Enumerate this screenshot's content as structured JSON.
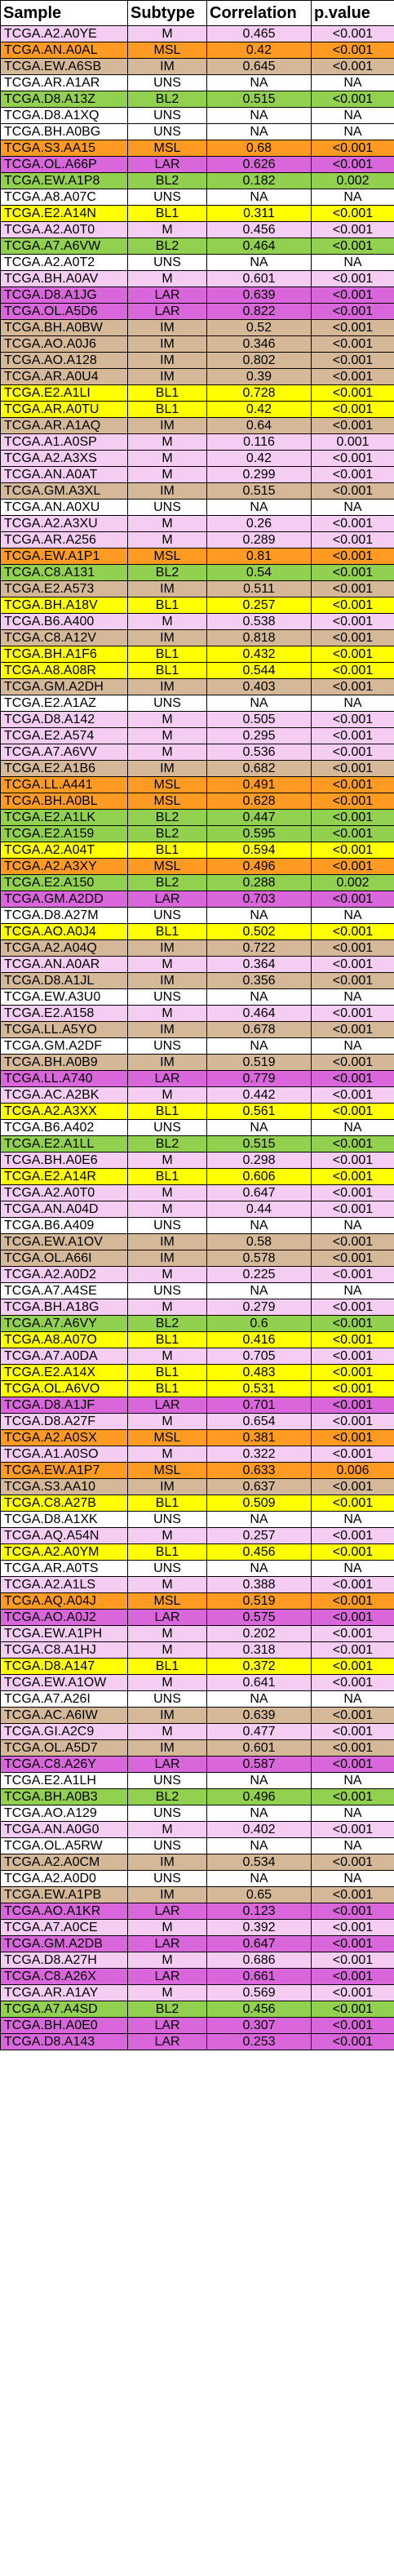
{
  "headers": [
    "Sample",
    "Subtype",
    "Correlation",
    "p.value"
  ],
  "colors": {
    "M": "#f5cdf3",
    "MSL": "#ff9b22",
    "IM": "#d5b897",
    "UNS": "#ffffff",
    "BL2": "#92d050",
    "LAR": "#d966da",
    "BL1": "#ffff00"
  },
  "rows": [
    [
      "TCGA.A2.A0YE",
      "M",
      "0.465",
      "<0.001"
    ],
    [
      "TCGA.AN.A0AL",
      "MSL",
      "0.42",
      "<0.001"
    ],
    [
      "TCGA.EW.A6SB",
      "IM",
      "0.645",
      "<0.001"
    ],
    [
      "TCGA.AR.A1AR",
      "UNS",
      "NA",
      "NA"
    ],
    [
      "TCGA.D8.A13Z",
      "BL2",
      "0.515",
      "<0.001"
    ],
    [
      "TCGA.D8.A1XQ",
      "UNS",
      "NA",
      "NA"
    ],
    [
      "TCGA.BH.A0BG",
      "UNS",
      "NA",
      "NA"
    ],
    [
      "TCGA.S3.AA15",
      "MSL",
      "0.68",
      "<0.001"
    ],
    [
      "TCGA.OL.A66P",
      "LAR",
      "0.626",
      "<0.001"
    ],
    [
      "TCGA.EW.A1P8",
      "BL2",
      "0.182",
      "0.002"
    ],
    [
      "TCGA.A8.A07C",
      "UNS",
      "NA",
      "NA"
    ],
    [
      "TCGA.E2.A14N",
      "BL1",
      "0.311",
      "<0.001"
    ],
    [
      "TCGA.A2.A0T0",
      "M",
      "0.456",
      "<0.001"
    ],
    [
      "TCGA.A7.A6VW",
      "BL2",
      "0.464",
      "<0.001"
    ],
    [
      "TCGA.A2.A0T2",
      "UNS",
      "NA",
      "NA"
    ],
    [
      "TCGA.BH.A0AV",
      "M",
      "0.601",
      "<0.001"
    ],
    [
      "TCGA.D8.A1JG",
      "LAR",
      "0.639",
      "<0.001"
    ],
    [
      "TCGA.OL.A5D6",
      "LAR",
      "0.822",
      "<0.001"
    ],
    [
      "TCGA.BH.A0BW",
      "IM",
      "0.52",
      "<0.001"
    ],
    [
      "TCGA.AO.A0J6",
      "IM",
      "0.346",
      "<0.001"
    ],
    [
      "TCGA.AO.A128",
      "IM",
      "0.802",
      "<0.001"
    ],
    [
      "TCGA.AR.A0U4",
      "IM",
      "0.39",
      "<0.001"
    ],
    [
      "TCGA.E2.A1LI",
      "BL1",
      "0.728",
      "<0.001"
    ],
    [
      "TCGA.AR.A0TU",
      "BL1",
      "0.42",
      "<0.001"
    ],
    [
      "TCGA.AR.A1AQ",
      "IM",
      "0.64",
      "<0.001"
    ],
    [
      "TCGA.A1.A0SP",
      "M",
      "0.116",
      "0.001"
    ],
    [
      "TCGA.A2.A3XS",
      "M",
      "0.42",
      "<0.001"
    ],
    [
      "TCGA.AN.A0AT",
      "M",
      "0.299",
      "<0.001"
    ],
    [
      "TCGA.GM.A3XL",
      "IM",
      "0.515",
      "<0.001"
    ],
    [
      "TCGA.AN.A0XU",
      "UNS",
      "NA",
      "NA"
    ],
    [
      "TCGA.A2.A3XU",
      "M",
      "0.26",
      "<0.001"
    ],
    [
      "TCGA.AR.A256",
      "M",
      "0.289",
      "<0.001"
    ],
    [
      "TCGA.EW.A1P1",
      "MSL",
      "0.81",
      "<0.001"
    ],
    [
      "TCGA.C8.A131",
      "BL2",
      "0.54",
      "<0.001"
    ],
    [
      "TCGA.E2.A573",
      "IM",
      "0.511",
      "<0.001"
    ],
    [
      "TCGA.BH.A18V",
      "BL1",
      "0.257",
      "<0.001"
    ],
    [
      "TCGA.B6.A400",
      "M",
      "0.538",
      "<0.001"
    ],
    [
      "TCGA.C8.A12V",
      "IM",
      "0.818",
      "<0.001"
    ],
    [
      "TCGA.BH.A1F6",
      "BL1",
      "0.432",
      "<0.001"
    ],
    [
      "TCGA.A8.A08R",
      "BL1",
      "0.544",
      "<0.001"
    ],
    [
      "TCGA.GM.A2DH",
      "IM",
      "0.403",
      "<0.001"
    ],
    [
      "TCGA.E2.A1AZ",
      "UNS",
      "NA",
      "NA"
    ],
    [
      "TCGA.D8.A142",
      "M",
      "0.505",
      "<0.001"
    ],
    [
      "TCGA.E2.A574",
      "M",
      "0.295",
      "<0.001"
    ],
    [
      "TCGA.A7.A6VV",
      "M",
      "0.536",
      "<0.001"
    ],
    [
      "TCGA.E2.A1B6",
      "IM",
      "0.682",
      "<0.001"
    ],
    [
      "TCGA.LL.A441",
      "MSL",
      "0.491",
      "<0.001"
    ],
    [
      "TCGA.BH.A0BL",
      "MSL",
      "0.628",
      "<0.001"
    ],
    [
      "TCGA.E2.A1LK",
      "BL2",
      "0.447",
      "<0.001"
    ],
    [
      "TCGA.E2.A159",
      "BL2",
      "0.595",
      "<0.001"
    ],
    [
      "TCGA.A2.A04T",
      "BL1",
      "0.594",
      "<0.001"
    ],
    [
      "TCGA.A2.A3XY",
      "MSL",
      "0.496",
      "<0.001"
    ],
    [
      "TCGA.E2.A150",
      "BL2",
      "0.288",
      "0.002"
    ],
    [
      "TCGA.GM.A2DD",
      "LAR",
      "0.703",
      "<0.001"
    ],
    [
      "TCGA.D8.A27M",
      "UNS",
      "NA",
      "NA"
    ],
    [
      "TCGA.AO.A0J4",
      "BL1",
      "0.502",
      "<0.001"
    ],
    [
      "TCGA.A2.A04Q",
      "IM",
      "0.722",
      "<0.001"
    ],
    [
      "TCGA.AN.A0AR",
      "M",
      "0.364",
      "<0.001"
    ],
    [
      "TCGA.D8.A1JL",
      "IM",
      "0.356",
      "<0.001"
    ],
    [
      "TCGA.EW.A3U0",
      "UNS",
      "NA",
      "NA"
    ],
    [
      "TCGA.E2.A158",
      "M",
      "0.464",
      "<0.001"
    ],
    [
      "TCGA.LL.A5YO",
      "IM",
      "0.678",
      "<0.001"
    ],
    [
      "TCGA.GM.A2DF",
      "UNS",
      "NA",
      "NA"
    ],
    [
      "TCGA.BH.A0B9",
      "IM",
      "0.519",
      "<0.001"
    ],
    [
      "TCGA.LL.A740",
      "LAR",
      "0.779",
      "<0.001"
    ],
    [
      "TCGA.AC.A2BK",
      "M",
      "0.442",
      "<0.001"
    ],
    [
      "TCGA.A2.A3XX",
      "BL1",
      "0.561",
      "<0.001"
    ],
    [
      "TCGA.B6.A402",
      "UNS",
      "NA",
      "NA"
    ],
    [
      "TCGA.E2.A1LL",
      "BL2",
      "0.515",
      "<0.001"
    ],
    [
      "TCGA.BH.A0E6",
      "M",
      "0.298",
      "<0.001"
    ],
    [
      "TCGA.E2.A14R",
      "BL1",
      "0.606",
      "<0.001"
    ],
    [
      "TCGA.A2.A0T0",
      "M",
      "0.647",
      "<0.001"
    ],
    [
      "TCGA.AN.A04D",
      "M",
      "0.44",
      "<0.001"
    ],
    [
      "TCGA.B6.A409",
      "UNS",
      "NA",
      "NA"
    ],
    [
      "TCGA.EW.A1OV",
      "IM",
      "0.58",
      "<0.001"
    ],
    [
      "TCGA.OL.A66I",
      "IM",
      "0.578",
      "<0.001"
    ],
    [
      "TCGA.A2.A0D2",
      "M",
      "0.225",
      "<0.001"
    ],
    [
      "TCGA.A7.A4SE",
      "UNS",
      "NA",
      "NA"
    ],
    [
      "TCGA.BH.A18G",
      "M",
      "0.279",
      "<0.001"
    ],
    [
      "TCGA.A7.A6VY",
      "BL2",
      "0.6",
      "<0.001"
    ],
    [
      "TCGA.A8.A07O",
      "BL1",
      "0.416",
      "<0.001"
    ],
    [
      "TCGA.A7.A0DA",
      "M",
      "0.705",
      "<0.001"
    ],
    [
      "TCGA.E2.A14X",
      "BL1",
      "0.483",
      "<0.001"
    ],
    [
      "TCGA.OL.A6VO",
      "BL1",
      "0.531",
      "<0.001"
    ],
    [
      "TCGA.D8.A1JF",
      "LAR",
      "0.701",
      "<0.001"
    ],
    [
      "TCGA.D8.A27F",
      "M",
      "0.654",
      "<0.001"
    ],
    [
      "TCGA.A2.A0SX",
      "MSL",
      "0.381",
      "<0.001"
    ],
    [
      "TCGA.A1.A0SO",
      "M",
      "0.322",
      "<0.001"
    ],
    [
      "TCGA.EW.A1P7",
      "MSL",
      "0.633",
      "0.006"
    ],
    [
      "TCGA.S3.AA10",
      "IM",
      "0.637",
      "<0.001"
    ],
    [
      "TCGA.C8.A27B",
      "BL1",
      "0.509",
      "<0.001"
    ],
    [
      "TCGA.D8.A1XK",
      "UNS",
      "NA",
      "NA"
    ],
    [
      "TCGA.AQ.A54N",
      "M",
      "0.257",
      "<0.001"
    ],
    [
      "TCGA.A2.A0YM",
      "BL1",
      "0.456",
      "<0.001"
    ],
    [
      "TCGA.AR.A0TS",
      "UNS",
      "NA",
      "NA"
    ],
    [
      "TCGA.A2.A1LS",
      "M",
      "0.388",
      "<0.001"
    ],
    [
      "TCGA.AQ.A04J",
      "MSL",
      "0.519",
      "<0.001"
    ],
    [
      "TCGA.AO.A0J2",
      "LAR",
      "0.575",
      "<0.001"
    ],
    [
      "TCGA.EW.A1PH",
      "M",
      "0.202",
      "<0.001"
    ],
    [
      "TCGA.C8.A1HJ",
      "M",
      "0.318",
      "<0.001"
    ],
    [
      "TCGA.D8.A147",
      "BL1",
      "0.372",
      "<0.001"
    ],
    [
      "TCGA.EW.A1OW",
      "M",
      "0.641",
      "<0.001"
    ],
    [
      "TCGA.A7.A26I",
      "UNS",
      "NA",
      "NA"
    ],
    [
      "TCGA.AC.A6IW",
      "IM",
      "0.639",
      "<0.001"
    ],
    [
      "TCGA.GI.A2C9",
      "M",
      "0.477",
      "<0.001"
    ],
    [
      "TCGA.OL.A5D7",
      "IM",
      "0.601",
      "<0.001"
    ],
    [
      "TCGA.C8.A26Y",
      "LAR",
      "0.587",
      "<0.001"
    ],
    [
      "TCGA.E2.A1LH",
      "UNS",
      "NA",
      "NA"
    ],
    [
      "TCGA.BH.A0B3",
      "BL2",
      "0.496",
      "<0.001"
    ],
    [
      "TCGA.AO.A129",
      "UNS",
      "NA",
      "NA"
    ],
    [
      "TCGA.AN.A0G0",
      "M",
      "0.402",
      "<0.001"
    ],
    [
      "TCGA.OL.A5RW",
      "UNS",
      "NA",
      "NA"
    ],
    [
      "TCGA.A2.A0CM",
      "IM",
      "0.534",
      "<0.001"
    ],
    [
      "TCGA.A2.A0D0",
      "UNS",
      "NA",
      "NA"
    ],
    [
      "TCGA.EW.A1PB",
      "IM",
      "0.65",
      "<0.001"
    ],
    [
      "TCGA.AO.A1KR",
      "LAR",
      "0.123",
      "<0.001"
    ],
    [
      "TCGA.A7.A0CE",
      "M",
      "0.392",
      "<0.001"
    ],
    [
      "TCGA.GM.A2DB",
      "LAR",
      "0.647",
      "<0.001"
    ],
    [
      "TCGA.D8.A27H",
      "M",
      "0.686",
      "<0.001"
    ],
    [
      "TCGA.C8.A26X",
      "LAR",
      "0.661",
      "<0.001"
    ],
    [
      "TCGA.AR.A1AY",
      "M",
      "0.569",
      "<0.001"
    ],
    [
      "TCGA.A7.A4SD",
      "BL2",
      "0.456",
      "<0.001"
    ],
    [
      "TCGA.BH.A0E0",
      "LAR",
      "0.307",
      "<0.001"
    ],
    [
      "TCGA.D8.A143",
      "LAR",
      "0.253",
      "<0.001"
    ]
  ]
}
